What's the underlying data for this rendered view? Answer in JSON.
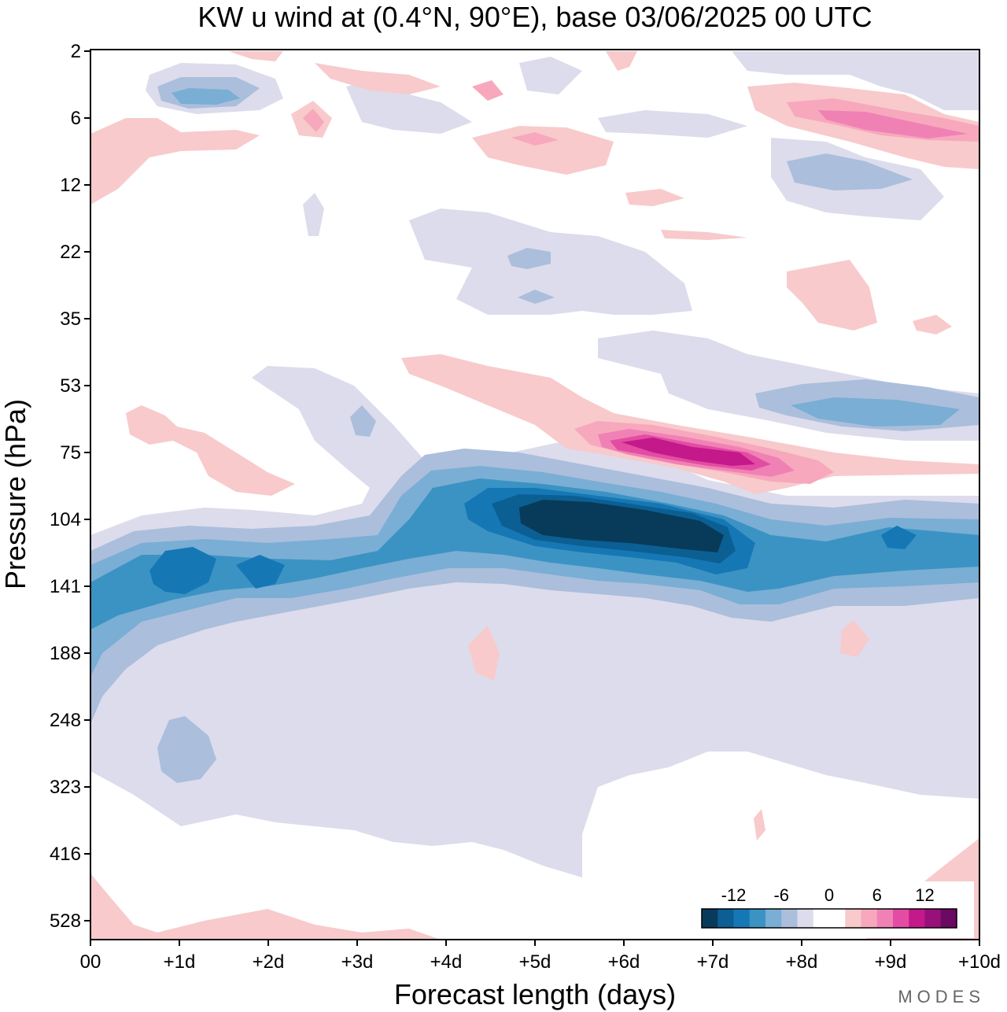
{
  "chart_data": {
    "type": "heatmap",
    "title": "KW u wind at (0.4°N, 90°E),  base 03/06/2025  00 UTC",
    "xlabel": "Forecast length (days)",
    "ylabel": "Pressure (hPa)",
    "x_ticks": [
      "00",
      "+1d",
      "+2d",
      "+3d",
      "+4d",
      "+5d",
      "+6d",
      "+7d",
      "+8d",
      "+9d",
      "+10d"
    ],
    "y_ticks": [
      "2",
      "6",
      "12",
      "22",
      "35",
      "53",
      "75",
      "104",
      "141",
      "188",
      "248",
      "323",
      "416",
      "528"
    ],
    "xlim_days": [
      0,
      10
    ],
    "ylim_hpa": [
      2,
      528
    ],
    "y_scale": "levels (nonlinear)",
    "colorbar": {
      "labels": [
        "-12",
        "-6",
        "0",
        "6",
        "12"
      ],
      "levels": [
        -16,
        -14,
        -12,
        -10,
        -8,
        -6,
        -4,
        -2,
        0,
        2,
        4,
        6,
        8,
        10,
        12,
        14,
        16
      ],
      "colors": [
        "#083a5a",
        "#0b5f93",
        "#1677b5",
        "#3b93c3",
        "#7aaed4",
        "#abbedc",
        "#dcdcec",
        "#ffffff",
        "#ffffff",
        "#f8cacb",
        "#f7a8bd",
        "#f081b5",
        "#e24da3",
        "#c4198a",
        "#98107a",
        "#6a0a62"
      ],
      "placement": "bottom-right"
    },
    "features": [
      {
        "level_hpa": "≈110",
        "days": "4.5–7.5",
        "value": "≤ -14",
        "desc": "strong easterly core"
      },
      {
        "level_hpa": "≈120–140",
        "days": "0–10",
        "value": "-4 to -10",
        "desc": "negative band"
      },
      {
        "level_hpa": "≈75",
        "days": "6–7.5",
        "value": "≈ +10",
        "desc": "westerly maximum"
      },
      {
        "level_hpa": "≈60",
        "days": "8–10",
        "value": "≈ -6",
        "desc": "negative patch"
      },
      {
        "level_hpa": "≈6–8",
        "days": "8.5–10",
        "value": "≈ +8",
        "desc": "upper westerly"
      }
    ]
  },
  "colors": {
    "neg1": "#dcdcec",
    "neg2": "#abbedc",
    "neg3": "#7aaed4",
    "neg4": "#3b93c3",
    "neg5": "#1677b5",
    "neg6": "#0b5f93",
    "neg7": "#083a5a",
    "pos1": "#f8cacb",
    "pos2": "#f7a8bd",
    "pos3": "#f081b5",
    "pos4": "#e24da3",
    "pos5": "#c4198a",
    "pos6": "#98107a",
    "pos7": "#6a0a62"
  },
  "brand": "MODES"
}
